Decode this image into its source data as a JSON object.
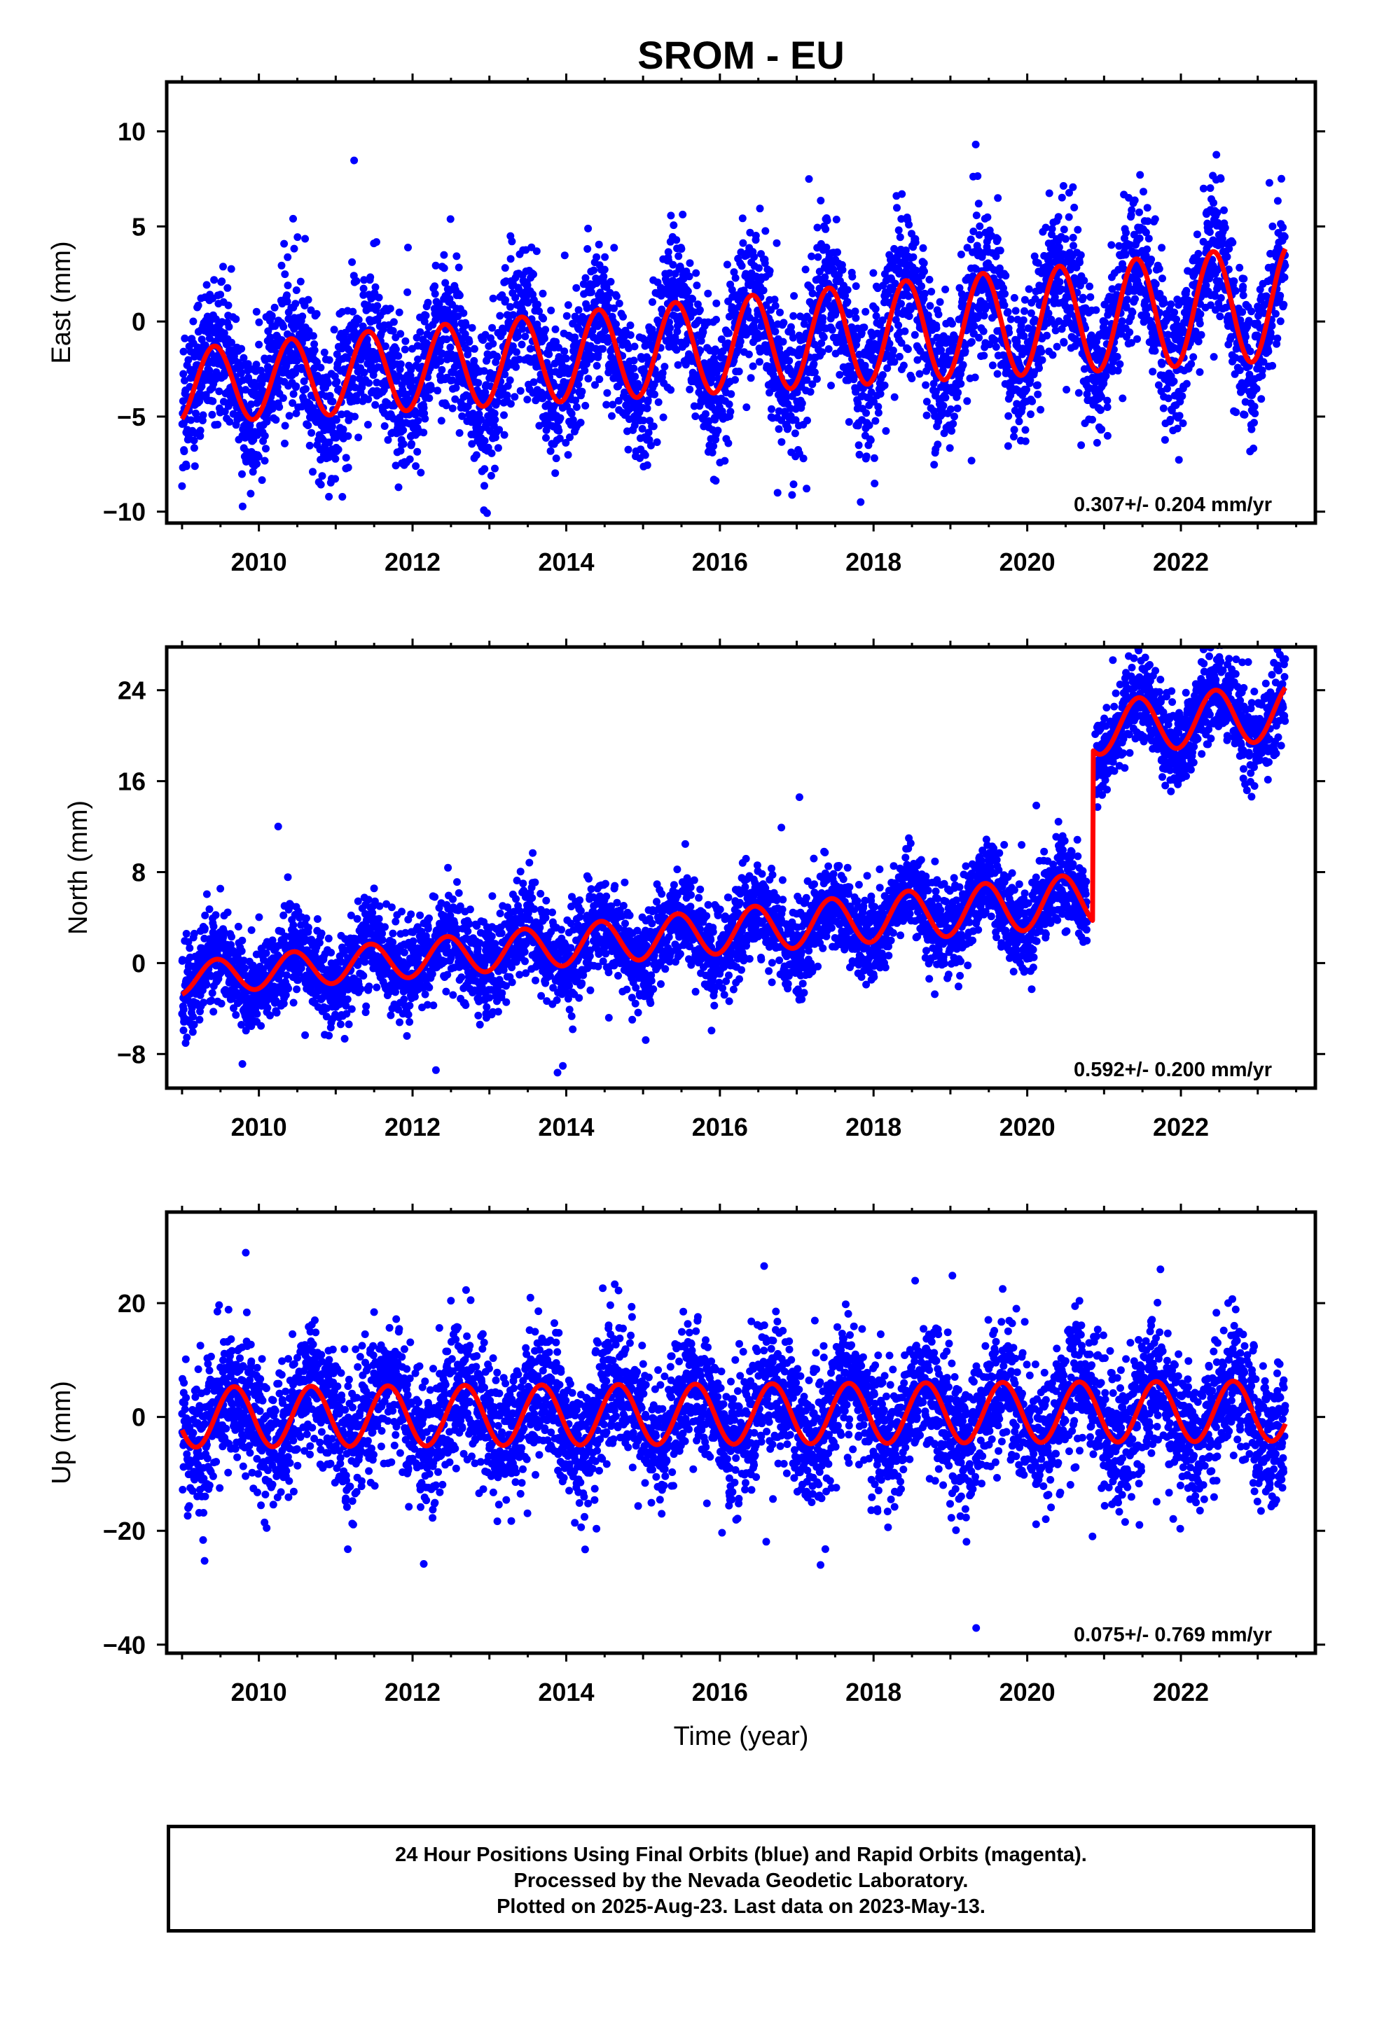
{
  "title": "SROM - EU",
  "xlabel": "Time (year)",
  "footer": {
    "line1": "24 Hour Positions Using Final Orbits (blue) and Rapid Orbits (magenta).",
    "line2": "Processed by the Nevada Geodetic Laboratory.",
    "line3": "Plotted on 2025-Aug-23. Last data on 2023-May-13."
  },
  "colors": {
    "observations": "#0000ff",
    "model": "#ff0000",
    "frame": "#000000"
  },
  "chart_data": [
    {
      "type": "scatter",
      "ylabel": "East (mm)",
      "rate_label": "0.307+/- 0.204 mm/yr",
      "xlim": [
        2008.8,
        2023.75
      ],
      "ylim": [
        -10.6,
        12.6
      ],
      "xticks": [
        2010,
        2012,
        2014,
        2016,
        2018,
        2020,
        2022
      ],
      "yticks": [
        10,
        5,
        0,
        -5,
        -10
      ],
      "yticklabels": [
        "10",
        "5",
        "0",
        "−5",
        "−10"
      ],
      "data_range": [
        2009.0,
        2023.36
      ],
      "model": {
        "offset": -1.2,
        "rate_mm_per_yr": 0.307,
        "t_ref": 2016.2,
        "amplitude": 2.5,
        "peak_phase": 0.42,
        "amplitude_growth": 0.03
      },
      "scatter_sd": 1.9,
      "series": [
        {
          "name": "Final Orbits",
          "style": "points"
        },
        {
          "name": "Model fit",
          "style": "line"
        }
      ]
    },
    {
      "type": "scatter",
      "ylabel": "North (mm)",
      "rate_label": "0.592+/- 0.200 mm/yr",
      "xlim": [
        2008.8,
        2023.75
      ],
      "ylim": [
        -11,
        27.8
      ],
      "xticks": [
        2010,
        2012,
        2014,
        2016,
        2018,
        2020,
        2022
      ],
      "yticks": [
        24,
        16,
        8,
        0,
        -8
      ],
      "yticklabels": [
        "24",
        "16",
        "8",
        "0",
        "−8"
      ],
      "data_range": [
        2009.0,
        2023.36
      ],
      "model": {
        "offset": -0.8,
        "rate_mm_per_yr": 0.592,
        "t_ref": 2010.0,
        "amplitude": 1.5,
        "peak_phase": 0.45,
        "amplitude_growth": 0.05
      },
      "step": {
        "at": 2020.85,
        "size": 15.0
      },
      "gap": [
        2020.78,
        2020.88
      ],
      "scatter_sd": 2.0,
      "series": [
        {
          "name": "Final Orbits",
          "style": "points"
        },
        {
          "name": "Model fit",
          "style": "line"
        }
      ]
    },
    {
      "type": "scatter",
      "ylabel": "Up (mm)",
      "rate_label": "0.075+/- 0.769 mm/yr",
      "xlim": [
        2008.8,
        2023.75
      ],
      "ylim": [
        -41.5,
        36
      ],
      "xticks": [
        2010,
        2012,
        2014,
        2016,
        2018,
        2020,
        2022
      ],
      "yticks": [
        20,
        0,
        -20,
        -40
      ],
      "yticklabels": [
        "20",
        "0",
        "−20",
        "−40"
      ],
      "data_range": [
        2009.0,
        2023.36
      ],
      "model": {
        "offset": 0.5,
        "rate_mm_per_yr": 0.075,
        "t_ref": 2016.0,
        "amplitude": 5.3,
        "peak_phase": 0.68,
        "amplitude_growth": 0.0
      },
      "scatter_sd": 6.0,
      "series": [
        {
          "name": "Final Orbits",
          "style": "points"
        },
        {
          "name": "Model fit",
          "style": "line"
        }
      ]
    }
  ]
}
